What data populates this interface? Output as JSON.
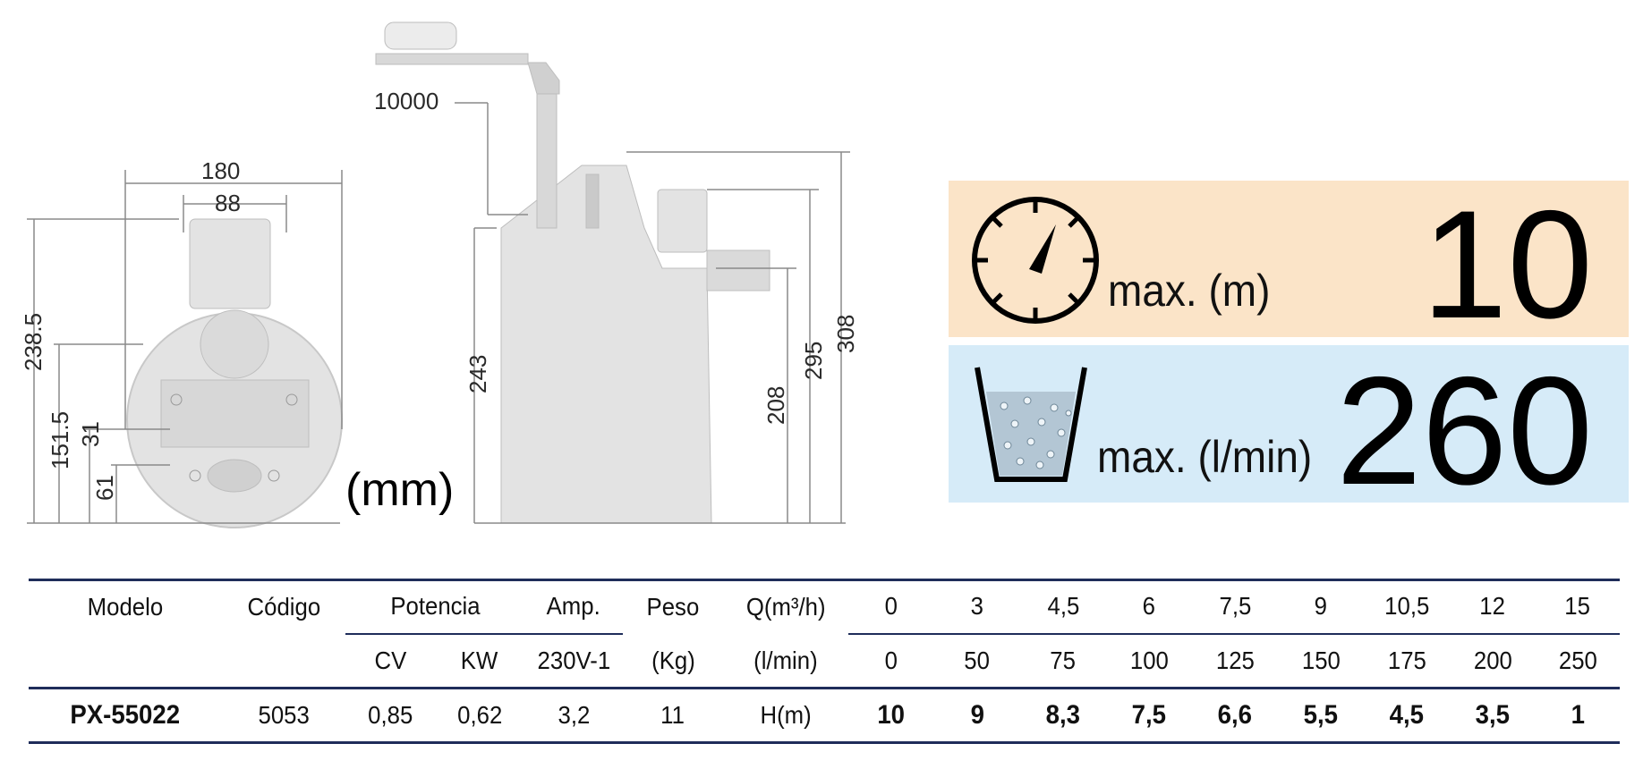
{
  "drawing": {
    "dims_front": {
      "width_total": "180",
      "width_outlet": "88",
      "height_total": "238.5",
      "h_mid": "151.5",
      "h_small": "31",
      "h_base": "61"
    },
    "dims_side": {
      "cable": "10000",
      "h_body": "243",
      "h_outlet": "208",
      "h_mid": "295",
      "h_total": "308"
    },
    "unit": "(mm)"
  },
  "specs": {
    "head": {
      "icon": "gauge-icon",
      "caption": "max. (m)",
      "value": "10",
      "color": "#fbe4c8"
    },
    "flow": {
      "icon": "bucket-icon",
      "caption": "max. (l/min)",
      "value": "260",
      "color": "#d6ebf8"
    }
  },
  "table": {
    "h_modelo": "Modelo",
    "h_codigo": "Código",
    "h_potencia": "Potencia",
    "h_amp": "Amp.",
    "h_peso": "Peso",
    "h_q": "Q(m³/h)",
    "h_cv": "CV",
    "h_kw": "KW",
    "h_volt": "230V-1",
    "h_kg": "(Kg)",
    "h_lmin": "(l/min)",
    "q_m3h": [
      "0",
      "3",
      "4,5",
      "6",
      "7,5",
      "9",
      "10,5",
      "12",
      "15"
    ],
    "q_lmin": [
      "0",
      "50",
      "75",
      "100",
      "125",
      "150",
      "175",
      "200",
      "250"
    ],
    "row": {
      "modelo": "PX-55022",
      "codigo": "5053",
      "cv": "0,85",
      "kw": "0,62",
      "amp": "3,2",
      "peso": "11",
      "label": "H(m)",
      "heads": [
        "10",
        "9",
        "8,3",
        "7,5",
        "6,6",
        "5,5",
        "4,5",
        "3,5",
        "1"
      ]
    }
  }
}
